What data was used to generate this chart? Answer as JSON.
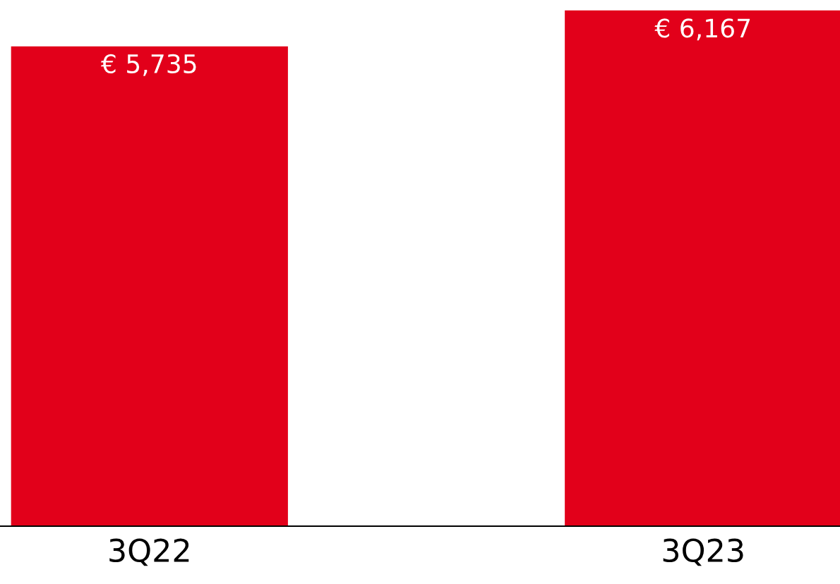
{
  "chart_data": {
    "type": "bar",
    "categories": [
      "3Q22",
      "3Q23"
    ],
    "values": [
      5735,
      6167
    ],
    "color": "#e2001a",
    "value_labels": [
      "€ 5,735",
      "€ 6,167"
    ],
    "grid": false,
    "legend": false
  }
}
